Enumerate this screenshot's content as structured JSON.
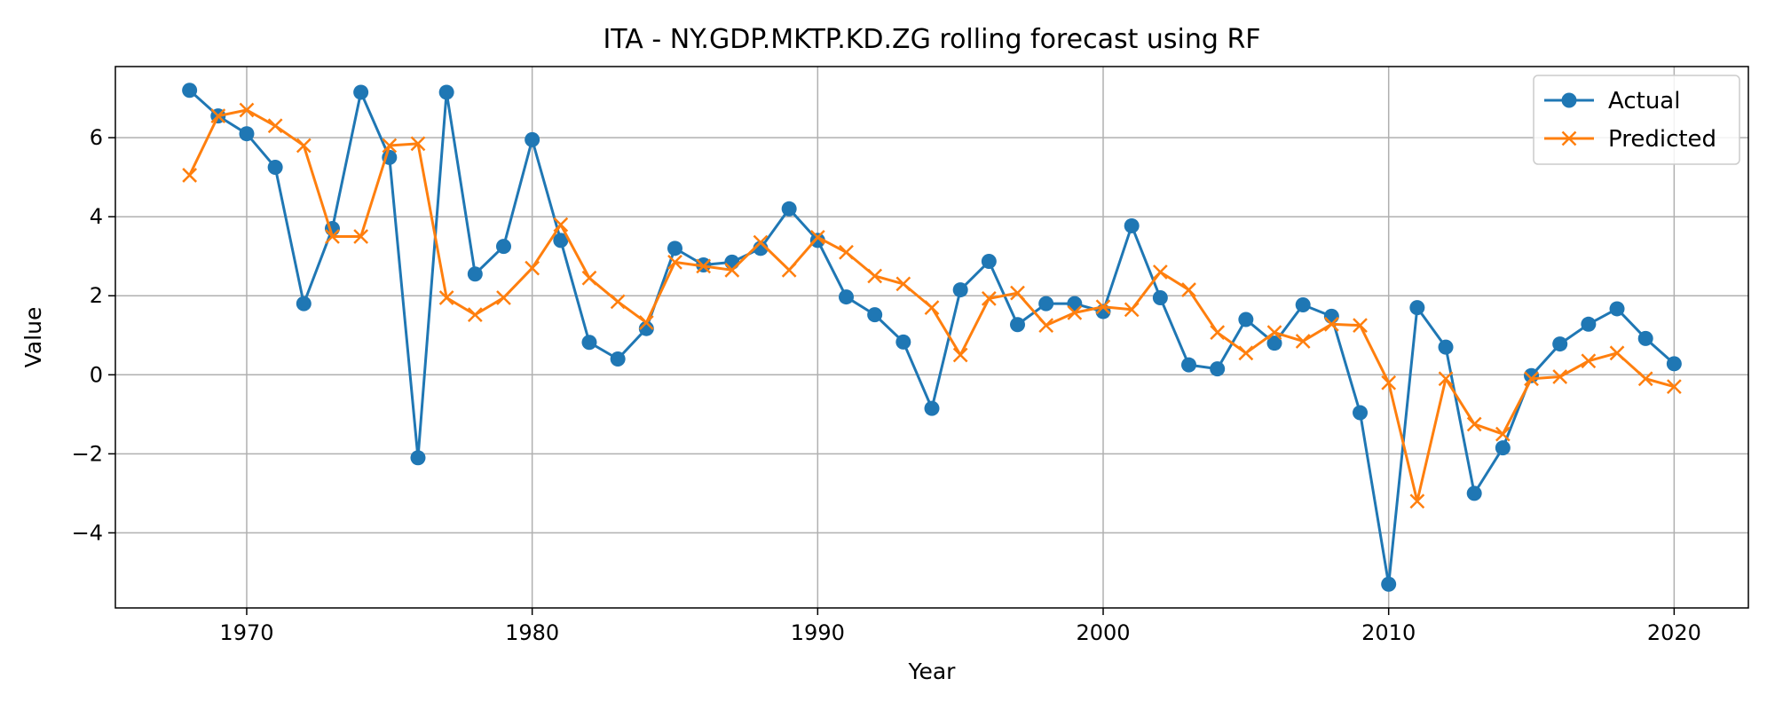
{
  "chart_data": {
    "type": "line",
    "title": "ITA - NY.GDP.MKTP.KD.ZG rolling forecast using RF",
    "xlabel": "Year",
    "ylabel": "Value",
    "xlim": [
      1965.4,
      2022.6
    ],
    "ylim": [
      -5.9,
      7.8
    ],
    "xticks": [
      1970,
      1980,
      1990,
      2000,
      2010,
      2020
    ],
    "yticks": [
      -4,
      -2,
      0,
      2,
      4,
      6
    ],
    "grid": true,
    "legend_position": "top-right",
    "x": [
      1968,
      1969,
      1970,
      1971,
      1972,
      1973,
      1974,
      1975,
      1976,
      1977,
      1978,
      1979,
      1980,
      1981,
      1982,
      1983,
      1984,
      1985,
      1986,
      1987,
      1988,
      1989,
      1990,
      1991,
      1992,
      1993,
      1994,
      1995,
      1996,
      1997,
      1998,
      1999,
      2000,
      2001,
      2002,
      2003,
      2004,
      2005,
      2006,
      2007,
      2008,
      2009,
      2010,
      2011,
      2012,
      2013,
      2014,
      2015,
      2016,
      2017,
      2018,
      2019,
      2020
    ],
    "series": [
      {
        "name": "Actual",
        "color": "#1f77b4",
        "marker": "circle",
        "values": [
          7.2,
          6.55,
          6.1,
          5.25,
          1.8,
          3.7,
          7.15,
          5.5,
          -2.1,
          7.15,
          2.55,
          3.25,
          5.95,
          3.4,
          0.82,
          0.4,
          1.17,
          3.2,
          2.78,
          2.85,
          3.2,
          4.2,
          3.4,
          1.97,
          1.52,
          0.83,
          -0.85,
          2.15,
          2.87,
          1.27,
          1.8,
          1.8,
          1.6,
          3.77,
          1.95,
          0.25,
          0.15,
          1.4,
          0.8,
          1.77,
          1.48,
          -0.96,
          -5.3,
          1.7,
          0.7,
          -3.0,
          -1.85,
          -0.02,
          0.78,
          1.28,
          1.67,
          0.92,
          0.28
        ]
      },
      {
        "name": "Predicted",
        "color": "#ff7f0e",
        "marker": "x",
        "values": [
          5.05,
          6.55,
          6.7,
          6.3,
          5.8,
          3.5,
          3.5,
          5.8,
          5.85,
          1.95,
          1.52,
          1.95,
          2.7,
          3.8,
          2.45,
          1.85,
          1.32,
          2.85,
          2.75,
          2.65,
          3.35,
          2.65,
          3.48,
          3.1,
          2.5,
          2.3,
          1.7,
          0.5,
          1.93,
          2.07,
          1.25,
          1.57,
          1.72,
          1.65,
          2.6,
          2.15,
          1.07,
          0.55,
          1.07,
          0.85,
          1.28,
          1.25,
          -0.2,
          -3.2,
          -0.1,
          -1.25,
          -1.5,
          -0.1,
          -0.05,
          0.35,
          0.55,
          -0.1,
          -0.3
        ]
      }
    ]
  }
}
